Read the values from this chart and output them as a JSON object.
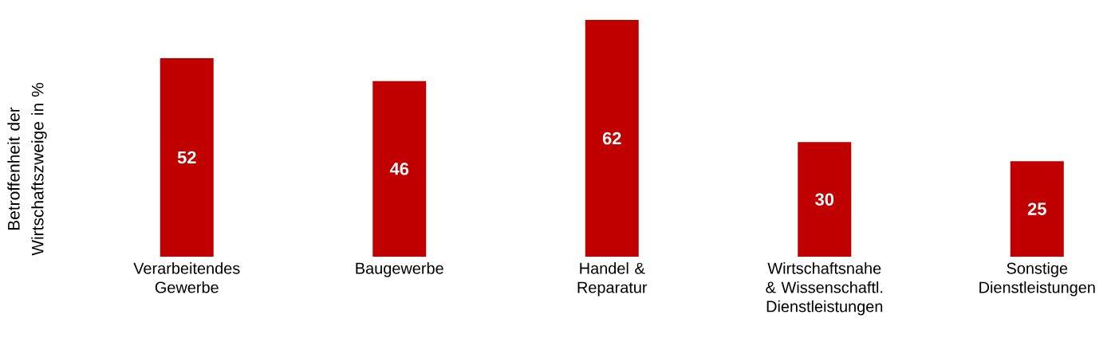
{
  "chart_data": {
    "type": "bar",
    "ylabel": "Betroffenheit der Wirtschaftszweige in %",
    "categories": [
      "Verarbeitendes Gewerbe",
      "Baugewerbe",
      "Handel & Reparatur",
      "Wirtschaftsnahe & Wissenschaftl. Dienstleistungen",
      "Sonstige Dienstleistungen"
    ],
    "values": [
      52,
      46,
      62,
      30,
      25
    ],
    "color": "#c00000",
    "ylim": [
      0,
      62
    ],
    "data_labels": true
  }
}
